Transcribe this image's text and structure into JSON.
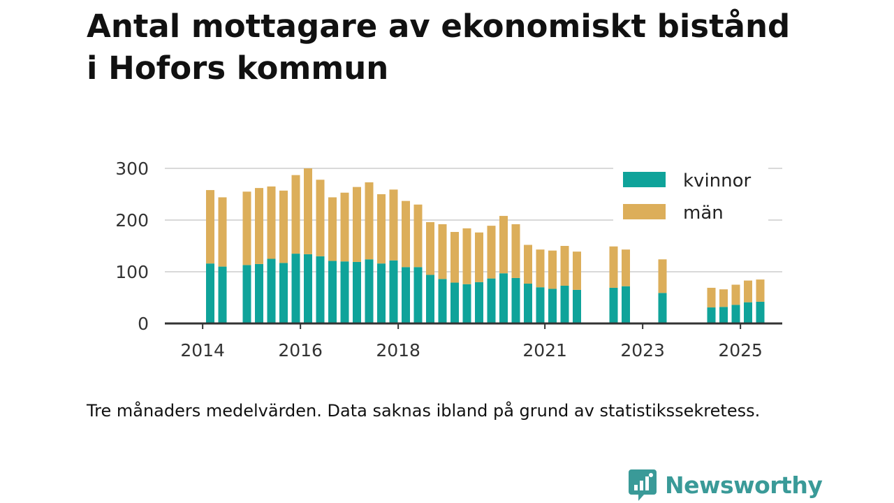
{
  "title_line1": "Antal mottagare av ekonomiskt bistånd",
  "title_line2": "i Hofors kommun",
  "note": "Tre månaders medelvärden. Data saknas ibland på grund av statistikssekretess.",
  "brand": {
    "name": "Newsworthy",
    "icon": "newsworthy-logo-icon",
    "color": "#3a9a98"
  },
  "colors": {
    "kvinnor": "#0fa39a",
    "man": "#dcae5a",
    "grid": "#d9d9d9",
    "axis": "#333333"
  },
  "chart_data": {
    "type": "bar",
    "stacked": true,
    "ylim": [
      0,
      300
    ],
    "yticks": [
      0,
      100,
      200,
      300
    ],
    "xticks": [
      "2014",
      "2016",
      "2018",
      "2021",
      "2023",
      "2025"
    ],
    "grid": true,
    "legend_position": "top-right",
    "series": [
      {
        "name": "kvinnor",
        "values": [
          116,
          110,
          null,
          113,
          115,
          125,
          117,
          135,
          134,
          130,
          121,
          120,
          119,
          124,
          116,
          122,
          109,
          109,
          94,
          86,
          79,
          76,
          80,
          87,
          97,
          88,
          77,
          70,
          67,
          73,
          65,
          null,
          null,
          69,
          72,
          null,
          null,
          59,
          null,
          null,
          null,
          31,
          32,
          36,
          41,
          42
        ]
      },
      {
        "name": "män",
        "values": [
          142,
          134,
          null,
          142,
          147,
          140,
          140,
          152,
          166,
          148,
          123,
          133,
          145,
          149,
          134,
          137,
          128,
          121,
          102,
          106,
          98,
          108,
          96,
          102,
          111,
          104,
          75,
          73,
          74,
          77,
          74,
          null,
          null,
          80,
          71,
          null,
          null,
          65,
          null,
          null,
          null,
          38,
          34,
          39,
          42,
          43
        ]
      }
    ]
  }
}
